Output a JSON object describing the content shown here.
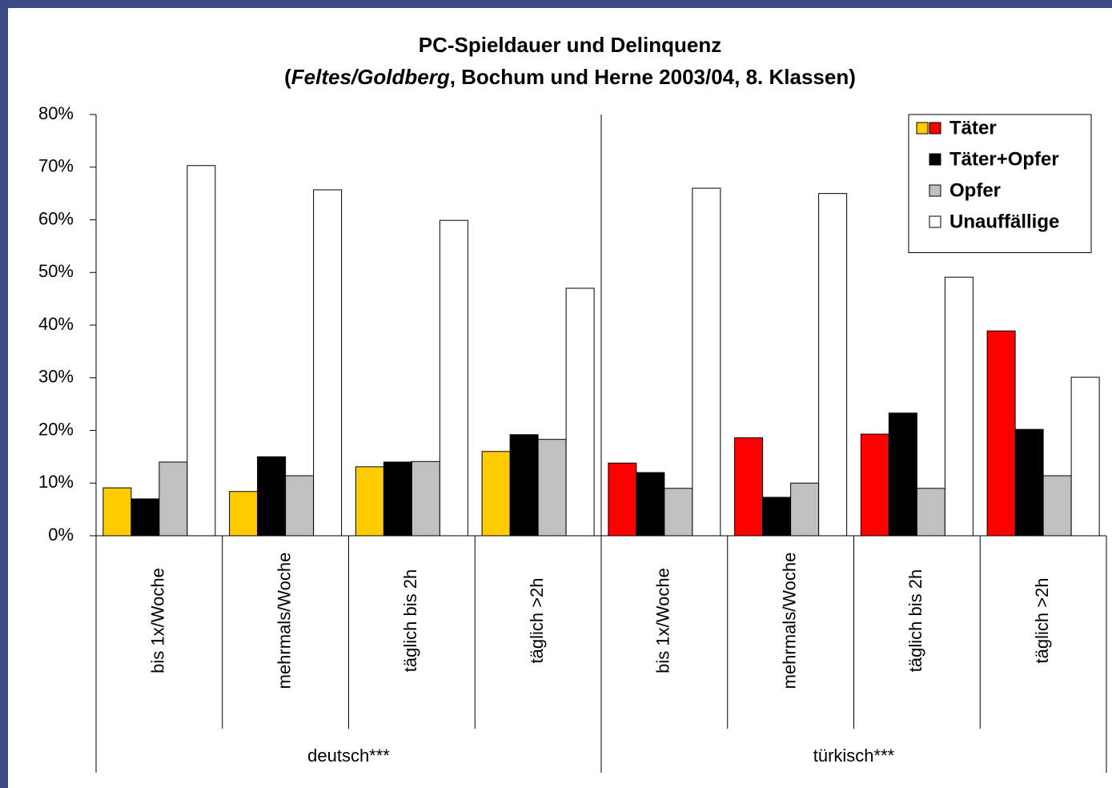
{
  "chart_data": {
    "type": "bar",
    "title": "PC-Spieldauer und Delinquenz",
    "subtitle_parts": [
      "(",
      "Feltes/Goldberg",
      ", Bochum und Herne 2003/04, 8. Klassen)"
    ],
    "groups": [
      {
        "label": "deutsch***",
        "categories": [
          "bis 1x/Woche",
          "mehrmals/Woche",
          "täglich bis 2h",
          "täglich >2h"
        ]
      },
      {
        "label": "türkisch***",
        "categories": [
          "bis 1x/Woche",
          "mehrmals/Woche",
          "täglich bis 2h",
          "täglich >2h"
        ]
      }
    ],
    "series": [
      {
        "name": "Täter",
        "colors": [
          "#ffcc00",
          "#ffcc00",
          "#ffcc00",
          "#ffcc00",
          "#ff0000",
          "#ff0000",
          "#ff0000",
          "#ff0000"
        ],
        "values": [
          9.1,
          8.4,
          13.1,
          16,
          13.8,
          18.6,
          19.3,
          38.9
        ]
      },
      {
        "name": "Täter+Opfer",
        "color": "#000000",
        "values": [
          7,
          15,
          14,
          19.2,
          12,
          7.3,
          23.3,
          20.2
        ]
      },
      {
        "name": "Opfer",
        "color": "#c0c0c0",
        "values": [
          14,
          11.4,
          14.1,
          18.3,
          9,
          10,
          9,
          11.4
        ]
      },
      {
        "name": "Unauffällige",
        "color": "#ffffff",
        "values": [
          70.3,
          65.7,
          59.9,
          47,
          66,
          65,
          49.1,
          30.1
        ]
      }
    ],
    "ylim": [
      0,
      80
    ],
    "yticks": [
      {
        "value": 0,
        "label": "0%"
      },
      {
        "value": 10,
        "label": "10%"
      },
      {
        "value": 20,
        "label": "20%"
      },
      {
        "value": 30,
        "label": "30%"
      },
      {
        "value": 40,
        "label": "40%"
      },
      {
        "value": 50,
        "label": "50%"
      },
      {
        "value": 60,
        "label": "60%"
      },
      {
        "value": 70,
        "label": "70%"
      },
      {
        "value": 80,
        "label": "80%"
      }
    ],
    "legend": "top-right"
  }
}
